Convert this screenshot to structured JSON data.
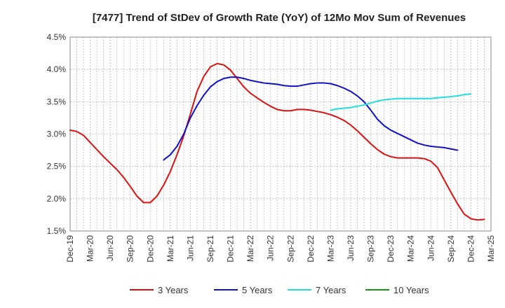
{
  "chart_data": {
    "type": "line",
    "title": "[7477]  Trend of StDev of Growth Rate (YoY) of 12Mo Mov Sum of Revenues",
    "xlabel": "",
    "ylabel": "",
    "ylim": [
      1.5,
      4.5
    ],
    "y_ticks": [
      "1.5%",
      "2.0%",
      "2.5%",
      "3.0%",
      "3.5%",
      "4.0%",
      "4.5%"
    ],
    "x_tick_labels": [
      "Dec-19",
      "Mar-20",
      "Jun-20",
      "Sep-20",
      "Dec-20",
      "Mar-21",
      "Jun-21",
      "Sep-21",
      "Dec-21",
      "Mar-22",
      "Jun-22",
      "Sep-22",
      "Dec-22",
      "Mar-23",
      "Jun-23",
      "Sep-23",
      "Dec-23",
      "Mar-24",
      "Jun-24",
      "Sep-24",
      "Dec-24",
      "Mar-25"
    ],
    "grid": true,
    "legend_position": "bottom",
    "series": [
      {
        "name": "3 Years",
        "color": "#dd1111",
        "start_index": 0,
        "values": [
          3.06,
          3.04,
          2.98,
          2.87,
          2.76,
          2.65,
          2.55,
          2.45,
          2.33,
          2.19,
          2.04,
          1.94,
          1.94,
          2.04,
          2.21,
          2.42,
          2.68,
          2.97,
          3.31,
          3.66,
          3.89,
          4.04,
          4.09,
          4.07,
          3.99,
          3.86,
          3.73,
          3.63,
          3.56,
          3.49,
          3.43,
          3.38,
          3.36,
          3.36,
          3.38,
          3.38,
          3.37,
          3.35,
          3.33,
          3.3,
          3.26,
          3.21,
          3.14,
          3.05,
          2.95,
          2.85,
          2.76,
          2.69,
          2.65,
          2.63,
          2.63,
          2.63,
          2.63,
          2.62,
          2.58,
          2.48,
          2.29,
          2.1,
          1.92,
          1.76,
          1.69,
          1.67,
          1.68
        ]
      },
      {
        "name": "5 Years",
        "color": "#1111cc",
        "start_index": 14,
        "values": [
          2.6,
          2.68,
          2.81,
          3.0,
          3.25,
          3.44,
          3.6,
          3.73,
          3.81,
          3.86,
          3.88,
          3.88,
          3.86,
          3.83,
          3.81,
          3.79,
          3.78,
          3.77,
          3.75,
          3.74,
          3.74,
          3.76,
          3.78,
          3.79,
          3.79,
          3.78,
          3.75,
          3.71,
          3.66,
          3.59,
          3.5,
          3.37,
          3.23,
          3.13,
          3.06,
          3.01,
          2.96,
          2.91,
          2.86,
          2.83,
          2.81,
          2.8,
          2.79,
          2.77,
          2.75
        ]
      },
      {
        "name": "7 Years",
        "color": "#22dddd",
        "start_index": 39,
        "values": [
          3.37,
          3.39,
          3.4,
          3.41,
          3.43,
          3.45,
          3.48,
          3.51,
          3.53,
          3.54,
          3.55,
          3.55,
          3.55,
          3.55,
          3.55,
          3.55,
          3.56,
          3.57,
          3.58,
          3.59,
          3.61,
          3.62
        ]
      },
      {
        "name": "10 Years",
        "color": "#119911",
        "start_index": 0,
        "values": []
      }
    ]
  }
}
